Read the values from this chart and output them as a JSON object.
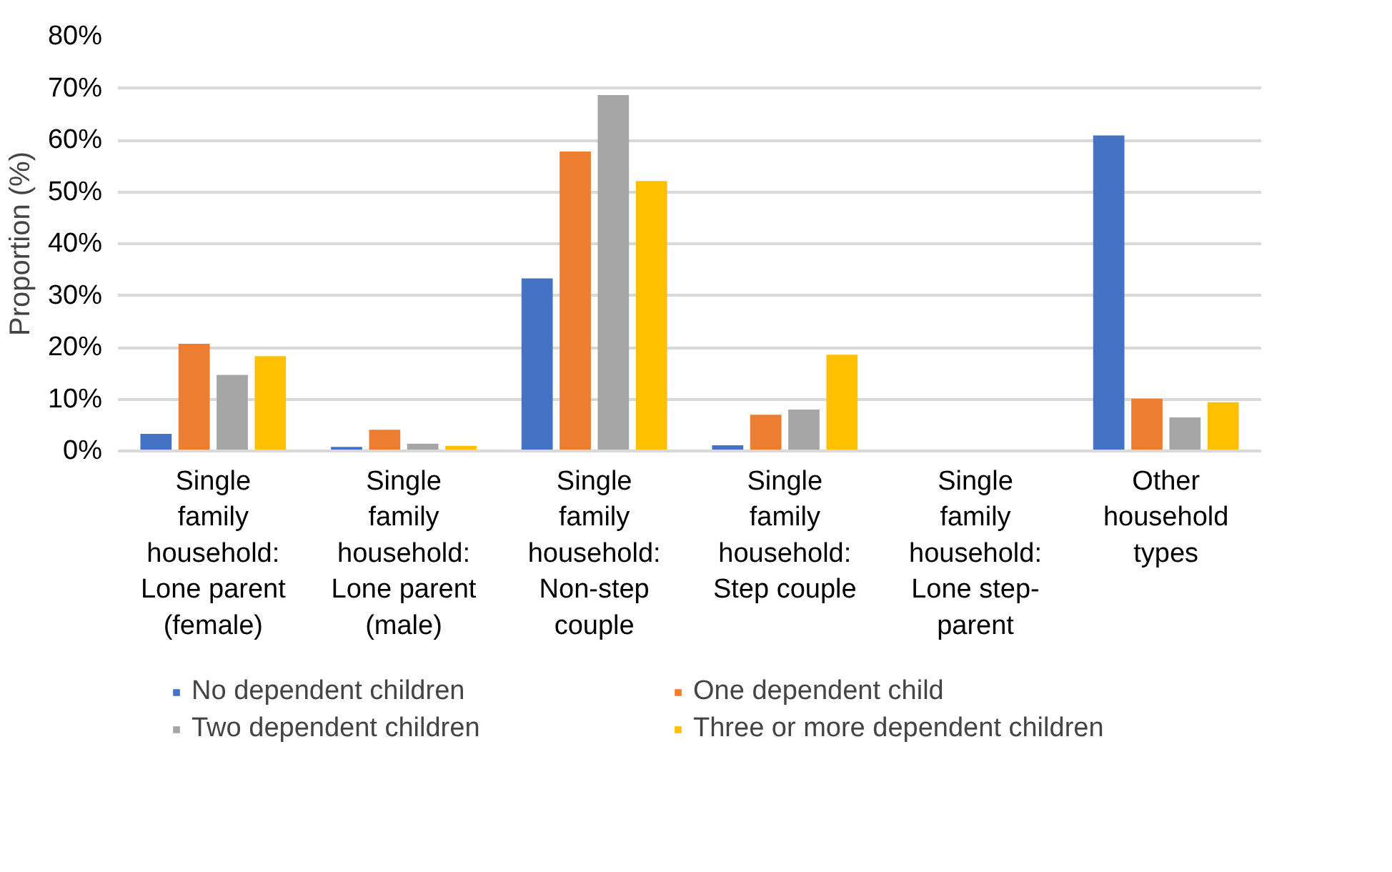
{
  "chart_data": {
    "type": "bar",
    "ylabel": "Proportion (%)",
    "categories": [
      "Single family household: Lone parent (female)",
      "Single family household: Lone parent (male)",
      "Single family household: Non-step couple",
      "Single family household: Step couple",
      "Single family household: Lone step-parent",
      "Other household types"
    ],
    "series": [
      {
        "name": "No dependent children",
        "color": "#4472c4",
        "values": [
          3.3,
          0.8,
          33.3,
          1.1,
          null,
          60.9
        ]
      },
      {
        "name": "One dependent child",
        "color": "#ed7d31",
        "values": [
          20.7,
          4.1,
          57.8,
          7.0,
          null,
          10.1
        ]
      },
      {
        "name": "Two dependent children",
        "color": "#a5a5a5",
        "values": [
          14.7,
          1.4,
          68.7,
          8.0,
          null,
          6.5
        ]
      },
      {
        "name": "Three or more dependent children",
        "color": "#ffc000",
        "values": [
          18.3,
          1.0,
          52.1,
          18.6,
          null,
          9.4
        ]
      }
    ],
    "ylim": [
      0,
      80
    ],
    "yticks": [
      {
        "value": 0,
        "label": "0%"
      },
      {
        "value": 10,
        "label": "10%"
      },
      {
        "value": 20,
        "label": "20%"
      },
      {
        "value": 30,
        "label": "30%"
      },
      {
        "value": 40,
        "label": "40%"
      },
      {
        "value": 50,
        "label": "50%"
      },
      {
        "value": 60,
        "label": "60%"
      },
      {
        "value": 70,
        "label": "70%"
      },
      {
        "value": 80,
        "label": "80%"
      }
    ],
    "grid": "y",
    "legend": "bottom"
  }
}
